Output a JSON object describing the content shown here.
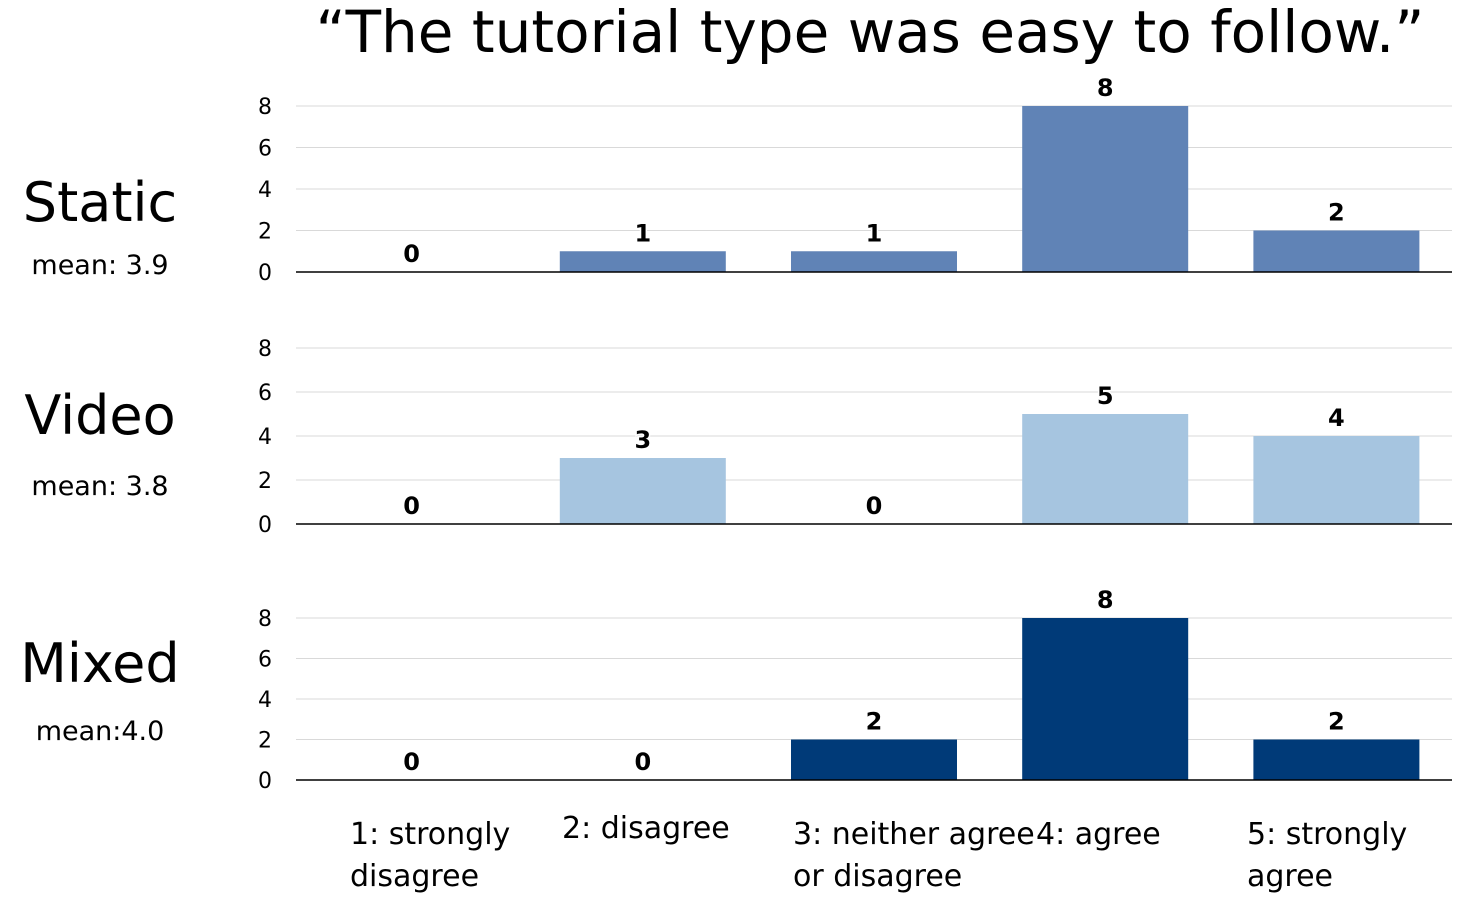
{
  "chart_data": {
    "type": "bar",
    "title": "“The tutorial type was easy to follow.”",
    "categories": [
      "1: strongly\ndisagree",
      "2: disagree",
      "3: neither agree\nor disagree",
      "4: agree",
      "5: strongly\nagree"
    ],
    "yticks": [
      0,
      2,
      4,
      6,
      8
    ],
    "ylim": [
      0,
      8
    ],
    "series": [
      {
        "name": "Static",
        "mean_label": "mean: 3.9",
        "color": "#6083b6",
        "values": [
          0,
          1,
          1,
          8,
          2
        ]
      },
      {
        "name": "Video",
        "mean_label": "mean: 3.8",
        "color": "#a6c5e0",
        "values": [
          0,
          3,
          0,
          5,
          4
        ]
      },
      {
        "name": "Mixed",
        "mean_label": "mean:4.0",
        "color": "#003a78",
        "values": [
          0,
          0,
          2,
          8,
          2
        ]
      }
    ],
    "grid": true,
    "legend": "none"
  }
}
